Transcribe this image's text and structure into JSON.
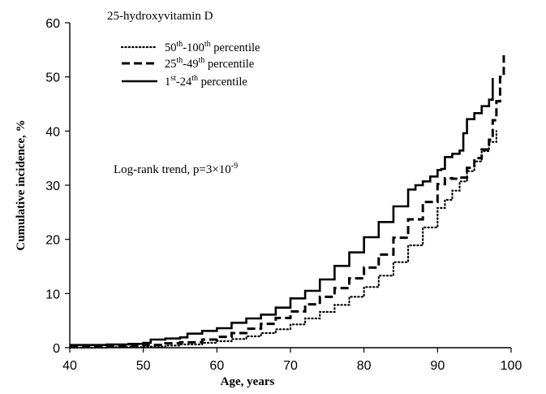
{
  "chart_data": {
    "type": "line",
    "title": "25-hydroxyvitamin D",
    "xlabel": "Age, years",
    "ylabel": "Cumulative incidence, %",
    "xlim": [
      40,
      100
    ],
    "ylim": [
      0,
      60
    ],
    "xticks": [
      "40",
      "50",
      "60",
      "70",
      "80",
      "90",
      "100"
    ],
    "yticks": [
      "0",
      "10",
      "20",
      "30",
      "40",
      "50",
      "60"
    ],
    "grid": false,
    "legend_position": "top-left",
    "annotation": {
      "prefix": "Log-rank trend, p=3×10",
      "exponent": "-9"
    },
    "series": [
      {
        "name": "50th-100th percentile",
        "label_parts": [
          "50",
          "th",
          "-100",
          "th",
          " percentile"
        ],
        "style": "dotted",
        "color": "#000000",
        "x": [
          40,
          45,
          50,
          53,
          55,
          58,
          60,
          62,
          64,
          66,
          68,
          70,
          72,
          74,
          76,
          78,
          80,
          82,
          84,
          86,
          88,
          90,
          91,
          92,
          93,
          94,
          95,
          96,
          97,
          98
        ],
        "y": [
          0,
          0.1,
          0.2,
          0.4,
          0.6,
          0.9,
          1.2,
          1.6,
          2.1,
          2.7,
          3.4,
          4.3,
          5.4,
          6.6,
          7.9,
          9.4,
          11.2,
          13.3,
          15.8,
          18.9,
          22.2,
          25.8,
          27.3,
          29.0,
          30.7,
          32.6,
          34.4,
          36.3,
          38.0,
          40.0
        ]
      },
      {
        "name": "25th-49th percentile",
        "label_parts": [
          "25",
          "th",
          "-49",
          "th",
          " percentile"
        ],
        "style": "dashed",
        "color": "#000000",
        "x": [
          40,
          45,
          50,
          53,
          55,
          58,
          60,
          62,
          64,
          66,
          68,
          70,
          72,
          74,
          76,
          78,
          80,
          82,
          84,
          86,
          88,
          90,
          91,
          92,
          93,
          94,
          95,
          96,
          97,
          97.5,
          98,
          98.5,
          99
        ],
        "y": [
          0.3,
          0.35,
          0.5,
          0.8,
          1.0,
          1.5,
          2.0,
          2.7,
          3.5,
          4.4,
          5.5,
          6.7,
          8.0,
          9.4,
          11.0,
          12.8,
          14.8,
          17.2,
          20.3,
          23.7,
          26.9,
          30.2,
          31.3,
          31.2,
          31.4,
          33.2,
          35.0,
          36.6,
          38.4,
          42.0,
          45.5,
          50.0,
          54.0
        ]
      },
      {
        "name": "1st-24th percentile",
        "label_parts": [
          "1",
          "st",
          "-24",
          "th",
          " percentile"
        ],
        "style": "solid",
        "color": "#000000",
        "x": [
          40,
          45,
          48,
          50,
          51,
          53,
          55,
          56,
          58,
          60,
          62,
          64,
          66,
          68,
          70,
          72,
          74,
          76,
          78,
          80,
          82,
          84,
          86,
          87,
          88,
          89,
          90,
          90.5,
          91,
          92,
          93,
          93.5,
          94,
          95,
          96,
          97,
          97.5
        ],
        "y": [
          0.5,
          0.6,
          0.7,
          0.9,
          1.5,
          1.7,
          1.9,
          2.6,
          3.1,
          3.6,
          4.6,
          5.4,
          6.1,
          7.4,
          9.1,
          10.5,
          12.6,
          15.1,
          17.6,
          20.4,
          23.2,
          26.1,
          29.2,
          30.0,
          30.7,
          31.6,
          32.8,
          33.0,
          35.2,
          35.8,
          36.4,
          39.6,
          42.2,
          43.3,
          44.6,
          45.8,
          49.8
        ]
      }
    ]
  }
}
